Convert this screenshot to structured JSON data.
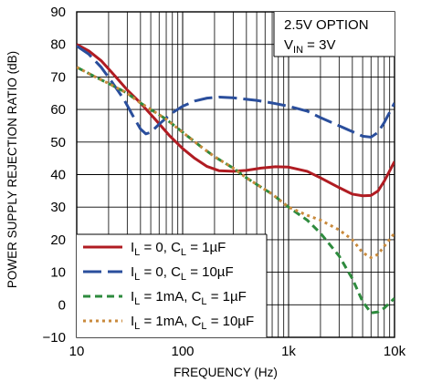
{
  "chart_data": {
    "type": "line",
    "x_scale": "log",
    "xlim": [
      10,
      10000
    ],
    "ylim": [
      -10,
      90
    ],
    "grid": true,
    "xlabel": "FREQUENCY (Hz)",
    "ylabel": "POWER SUPPLY REJECTION RATIO (dB)",
    "x_ticks": [
      10,
      100,
      1000,
      10000
    ],
    "x_tick_labels": [
      "10",
      "100",
      "1k",
      "10k"
    ],
    "y_ticks": [
      -10,
      0,
      10,
      20,
      30,
      40,
      50,
      60,
      70,
      80,
      90
    ],
    "y_tick_labels": [
      "−10",
      "0",
      "10",
      "20",
      "30",
      "40",
      "50",
      "60",
      "70",
      "80",
      "90"
    ],
    "legend_position": "bottom-left",
    "annotations": [
      {
        "main": "2.5V OPTION",
        "sub": ""
      },
      {
        "main": "V",
        "sub": "IN",
        "rest": " = 3V"
      }
    ],
    "series": [
      {
        "legend_main": "I",
        "legend_sub1": "L",
        "legend_mid": " = 0, C",
        "legend_sub2": "L",
        "legend_end": " = 1µF",
        "color": "#b01c22",
        "dash": "solid",
        "points": [
          [
            10,
            80
          ],
          [
            13,
            78
          ],
          [
            17,
            75
          ],
          [
            22,
            71
          ],
          [
            30,
            66
          ],
          [
            40,
            62
          ],
          [
            55,
            57
          ],
          [
            75,
            52
          ],
          [
            100,
            48
          ],
          [
            130,
            45
          ],
          [
            170,
            42.5
          ],
          [
            220,
            41.2
          ],
          [
            300,
            41
          ],
          [
            400,
            41.3
          ],
          [
            550,
            42
          ],
          [
            750,
            42.4
          ],
          [
            1000,
            42.3
          ],
          [
            1500,
            41
          ],
          [
            2000,
            39
          ],
          [
            3000,
            36
          ],
          [
            4000,
            34
          ],
          [
            5000,
            33.5
          ],
          [
            6000,
            33.6
          ],
          [
            7000,
            35
          ],
          [
            8000,
            38
          ],
          [
            10000,
            44
          ]
        ]
      },
      {
        "legend_main": "I",
        "legend_sub1": "L",
        "legend_mid": " = 0, C",
        "legend_sub2": "L",
        "legend_end": " = 10µF",
        "color": "#2a4e9c",
        "dash": "long",
        "points": [
          [
            10,
            79.5
          ],
          [
            13,
            77
          ],
          [
            17,
            73
          ],
          [
            22,
            68
          ],
          [
            28,
            63
          ],
          [
            34,
            58
          ],
          [
            40,
            54
          ],
          [
            45,
            52.5
          ],
          [
            50,
            53
          ],
          [
            60,
            55.5
          ],
          [
            80,
            59
          ],
          [
            100,
            61
          ],
          [
            130,
            62.6
          ],
          [
            170,
            63.5
          ],
          [
            220,
            63.8
          ],
          [
            300,
            63.6
          ],
          [
            500,
            62.8
          ],
          [
            700,
            62
          ],
          [
            1000,
            61
          ],
          [
            1500,
            59.5
          ],
          [
            2000,
            57.5
          ],
          [
            3000,
            55
          ],
          [
            4000,
            53.2
          ],
          [
            5000,
            51.8
          ],
          [
            6000,
            51.5
          ],
          [
            7000,
            53
          ],
          [
            8000,
            56
          ],
          [
            10000,
            62
          ]
        ]
      },
      {
        "legend_main": "I",
        "legend_sub1": "L",
        "legend_mid": " = 1mA, C",
        "legend_sub2": "L",
        "legend_end": " = 1µF",
        "color": "#2e8b3e",
        "dash": "medium",
        "points": [
          [
            10,
            73
          ],
          [
            15,
            70
          ],
          [
            20,
            68
          ],
          [
            30,
            65
          ],
          [
            40,
            62
          ],
          [
            50,
            60
          ],
          [
            70,
            57
          ],
          [
            100,
            53
          ],
          [
            150,
            48.5
          ],
          [
            200,
            45.5
          ],
          [
            300,
            42
          ],
          [
            400,
            39
          ],
          [
            500,
            37
          ],
          [
            700,
            34
          ],
          [
            1000,
            30
          ],
          [
            1500,
            26
          ],
          [
            2000,
            22
          ],
          [
            3000,
            15
          ],
          [
            4000,
            8
          ],
          [
            5000,
            1
          ],
          [
            6000,
            -2.5
          ],
          [
            7000,
            -2.2
          ],
          [
            8000,
            -1
          ],
          [
            10000,
            2
          ]
        ]
      },
      {
        "legend_main": "I",
        "legend_sub1": "L",
        "legend_mid": " = 1mA, C",
        "legend_sub2": "L",
        "legend_end": " = 10µF",
        "color": "#c98a3c",
        "dash": "dotted",
        "points": [
          [
            10,
            73
          ],
          [
            15,
            70
          ],
          [
            20,
            68
          ],
          [
            30,
            65
          ],
          [
            40,
            62
          ],
          [
            50,
            60
          ],
          [
            70,
            57
          ],
          [
            100,
            53
          ],
          [
            150,
            48.5
          ],
          [
            200,
            45.5
          ],
          [
            300,
            42
          ],
          [
            400,
            39
          ],
          [
            500,
            37
          ],
          [
            700,
            34
          ],
          [
            1000,
            30
          ],
          [
            1500,
            27.5
          ],
          [
            2000,
            26
          ],
          [
            3000,
            23
          ],
          [
            4000,
            20
          ],
          [
            5000,
            16
          ],
          [
            6000,
            14.5
          ],
          [
            7000,
            15.5
          ],
          [
            8000,
            18
          ],
          [
            10000,
            22
          ]
        ]
      }
    ]
  }
}
